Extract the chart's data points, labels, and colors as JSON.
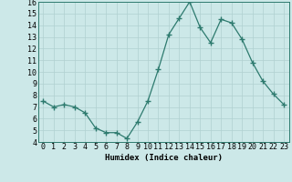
{
  "x": [
    0,
    1,
    2,
    3,
    4,
    5,
    6,
    7,
    8,
    9,
    10,
    11,
    12,
    13,
    14,
    15,
    16,
    17,
    18,
    19,
    20,
    21,
    22,
    23
  ],
  "y": [
    7.5,
    7.0,
    7.2,
    7.0,
    6.5,
    5.2,
    4.8,
    4.8,
    4.3,
    5.7,
    7.5,
    10.2,
    13.2,
    14.6,
    16.0,
    13.8,
    12.5,
    14.5,
    14.2,
    12.8,
    10.8,
    9.2,
    8.1,
    7.2
  ],
  "line_color": "#2d7a6e",
  "marker": "+",
  "marker_size": 4,
  "marker_lw": 1.0,
  "bg_color": "#cce8e8",
  "grid_color": "#b0d0d0",
  "xlabel": "Humidex (Indice chaleur)",
  "ylim": [
    4,
    16
  ],
  "xlim": [
    -0.5,
    23.5
  ],
  "yticks": [
    4,
    5,
    6,
    7,
    8,
    9,
    10,
    11,
    12,
    13,
    14,
    15,
    16
  ],
  "xticks": [
    0,
    1,
    2,
    3,
    4,
    5,
    6,
    7,
    8,
    9,
    10,
    11,
    12,
    13,
    14,
    15,
    16,
    17,
    18,
    19,
    20,
    21,
    22,
    23
  ],
  "xtick_labels": [
    "0",
    "1",
    "2",
    "3",
    "4",
    "5",
    "6",
    "7",
    "8",
    "9",
    "10",
    "11",
    "12",
    "13",
    "14",
    "15",
    "16",
    "17",
    "18",
    "19",
    "20",
    "21",
    "22",
    "23"
  ],
  "label_fontsize": 6.5,
  "tick_fontsize": 6.0
}
